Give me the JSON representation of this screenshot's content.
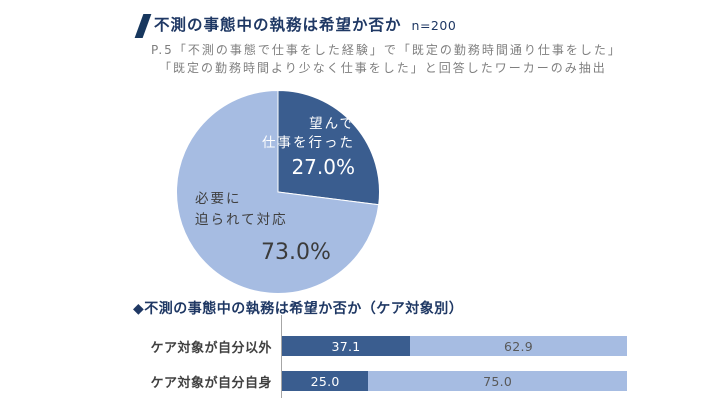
{
  "header": {
    "title": "不測の事態中の執務は希望か否か",
    "sample_size": "n=200",
    "subtitle_lines": [
      "P.5「不測の事態で仕事をした経験」で「既定の勤務時間通り仕事をした」",
      "「既定の勤務時間より少なく仕事をした」と回答したワーカーのみ抽出"
    ]
  },
  "colors": {
    "dark": "#3A5D8F",
    "light": "#A6BCE2",
    "title_navy": "#1F3864",
    "slash_navy": "#17375E",
    "subtitle_gray": "#7F7F7F",
    "label_gray": "#404040",
    "value_gray": "#595959",
    "axis_gray": "#A6A6A6",
    "big_value_dark": "#3B3B3B",
    "white": "#FFFFFF"
  },
  "chart_data": [
    {
      "type": "pie",
      "title": "不測の事態中の執務は希望か否か",
      "n": 200,
      "start_angle_deg": 0,
      "direction": "clockwise",
      "slices": [
        {
          "label": "望んで仕事を行った",
          "label_lines": [
            "望んで",
            "仕事を行った"
          ],
          "value": 27.0,
          "display": "27.0%",
          "color": "dark"
        },
        {
          "label": "必要に迫られて対応",
          "label_lines": [
            "必要に",
            "迫られて対応"
          ],
          "value": 73.0,
          "display": "73.0%",
          "color": "light"
        }
      ]
    },
    {
      "type": "bar",
      "subtype": "stacked-horizontal-100",
      "title": "◆不測の事態中の執務は希望か否か（ケア対象別）",
      "categories": [
        "ケア対象が自分以外",
        "ケア対象が自分自身"
      ],
      "series": [
        {
          "name": "望んで仕事を行った",
          "color": "dark",
          "values": [
            37.1,
            25.0
          ]
        },
        {
          "name": "必要に迫られて対応",
          "color": "light",
          "values": [
            62.9,
            75.0
          ]
        }
      ],
      "xlim": [
        0,
        100
      ],
      "legend": "none",
      "grid": false
    }
  ]
}
